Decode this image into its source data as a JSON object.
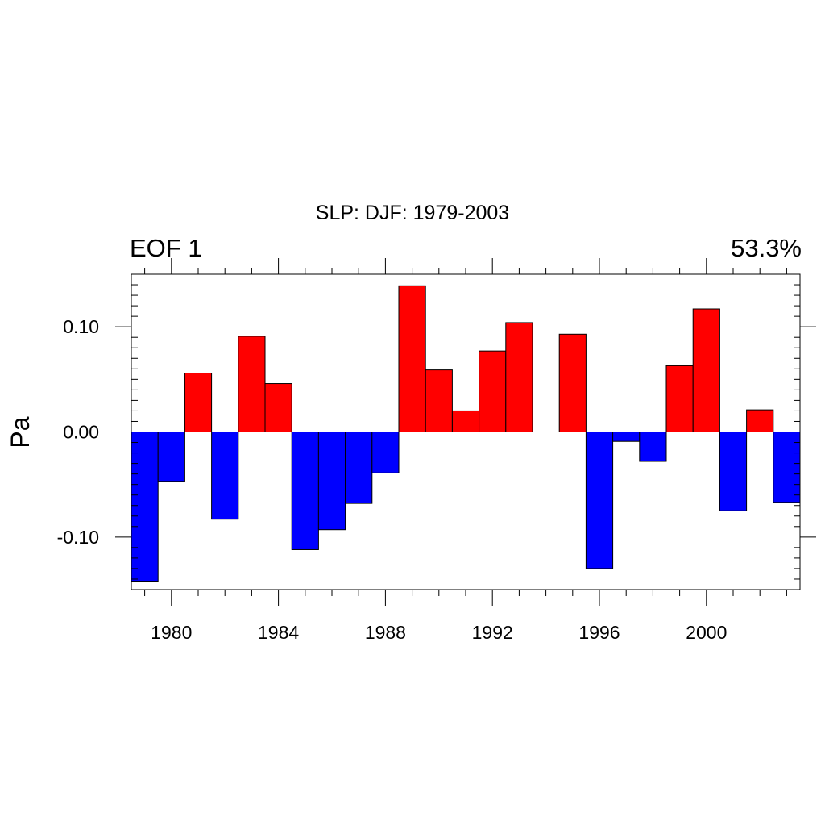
{
  "chart_data": {
    "type": "bar",
    "title": "SLP: DJF: 1979-2003",
    "left_label": "EOF 1",
    "right_label": "53.3%",
    "ylabel": "Pa",
    "xlabel": "",
    "xlim": [
      1978.5,
      2003.5
    ],
    "ylim": [
      -0.15,
      0.15
    ],
    "x_ticks": [
      1980,
      1984,
      1988,
      1992,
      1996,
      2000
    ],
    "y_ticks": [
      {
        "value": 0.1,
        "label": "0.10"
      },
      {
        "value": 0.0,
        "label": "0.00"
      },
      {
        "value": -0.1,
        "label": "-0.10"
      }
    ],
    "positive_color": "#ff0000",
    "negative_color": "#0000ff",
    "x": [
      1979,
      1980,
      1981,
      1982,
      1983,
      1984,
      1985,
      1986,
      1987,
      1988,
      1989,
      1990,
      1991,
      1992,
      1993,
      1994,
      1995,
      1996,
      1997,
      1998,
      1999,
      2000,
      2001,
      2002,
      2003
    ],
    "values": [
      -0.142,
      -0.047,
      0.056,
      -0.083,
      0.091,
      0.046,
      -0.112,
      -0.093,
      -0.068,
      -0.039,
      0.139,
      0.059,
      0.02,
      0.077,
      0.104,
      0.0,
      0.093,
      -0.13,
      -0.009,
      -0.028,
      0.063,
      0.117,
      -0.075,
      0.021,
      -0.067
    ]
  }
}
